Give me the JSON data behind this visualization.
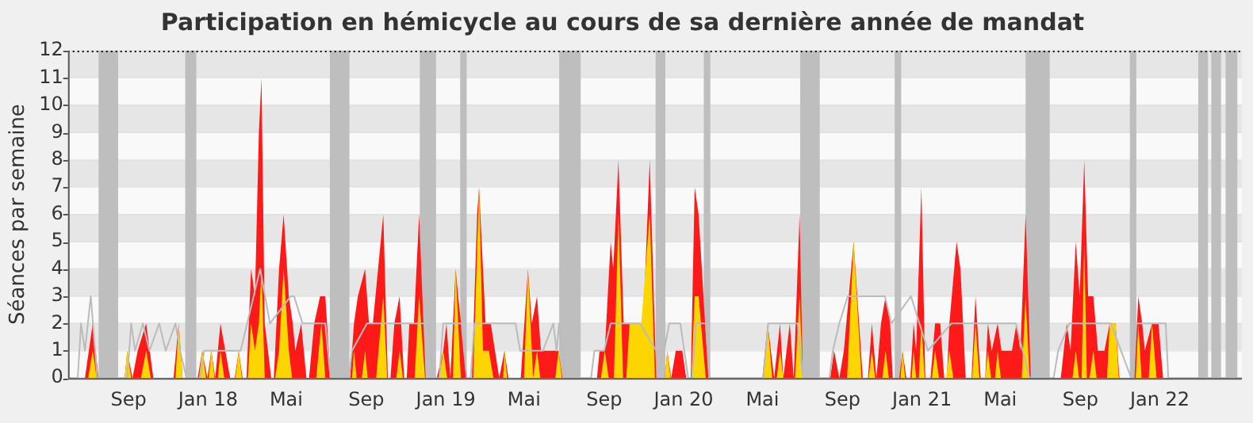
{
  "chart_data": {
    "type": "area",
    "title": "Participation en hémicycle au cours de sa dernière année de mandat",
    "ylabel": "Séances par semaine",
    "xlim": [
      "2017-05-31",
      "2022-05-07"
    ],
    "ylim": [
      0,
      12
    ],
    "yticks": [
      0,
      1,
      2,
      3,
      4,
      5,
      6,
      7,
      8,
      9,
      10,
      11,
      12
    ],
    "xticks": [
      {
        "value": "2017-09-01",
        "label": "Sep"
      },
      {
        "value": "2018-01-01",
        "label": "Jan 18"
      },
      {
        "value": "2018-05-01",
        "label": "Mai"
      },
      {
        "value": "2018-09-01",
        "label": "Sep"
      },
      {
        "value": "2019-01-01",
        "label": "Jan 19"
      },
      {
        "value": "2019-05-01",
        "label": "Mai"
      },
      {
        "value": "2019-09-01",
        "label": "Sep"
      },
      {
        "value": "2020-01-01",
        "label": "Jan 20"
      },
      {
        "value": "2020-05-01",
        "label": "Mai"
      },
      {
        "value": "2020-09-01",
        "label": "Sep"
      },
      {
        "value": "2021-01-01",
        "label": "Jan 21"
      },
      {
        "value": "2021-05-01",
        "label": "Mai"
      },
      {
        "value": "2021-09-01",
        "label": "Sep"
      },
      {
        "value": "2022-01-01",
        "label": "Jan 22"
      }
    ],
    "grid": "y",
    "legend": false,
    "bands": [
      {
        "axis": "x",
        "from": "2017-07-17",
        "to": "2017-08-16",
        "color": "#bebebe"
      },
      {
        "axis": "x",
        "from": "2017-11-27",
        "to": "2017-12-14",
        "color": "#bebebe"
      },
      {
        "axis": "x",
        "from": "2018-07-07",
        "to": "2018-08-06",
        "color": "#bebebe"
      },
      {
        "axis": "x",
        "from": "2018-11-22",
        "to": "2018-12-17",
        "color": "#bebebe"
      },
      {
        "axis": "x",
        "from": "2019-01-23",
        "to": "2019-02-02",
        "color": "#bebebe"
      },
      {
        "axis": "x",
        "from": "2019-06-24",
        "to": "2019-07-27",
        "color": "#bebebe"
      },
      {
        "axis": "x",
        "from": "2019-11-19",
        "to": "2019-12-04",
        "color": "#bebebe"
      },
      {
        "axis": "x",
        "from": "2020-02-01",
        "to": "2020-02-11",
        "color": "#bebebe"
      },
      {
        "axis": "x",
        "from": "2020-06-28",
        "to": "2020-07-28",
        "color": "#bebebe"
      },
      {
        "axis": "x",
        "from": "2020-11-20",
        "to": "2020-11-30",
        "color": "#bebebe"
      },
      {
        "axis": "x",
        "from": "2021-06-09",
        "to": "2021-07-16",
        "color": "#bebebe"
      },
      {
        "axis": "x",
        "from": "2021-11-16",
        "to": "2021-11-26",
        "color": "#bebebe"
      },
      {
        "axis": "x",
        "from": "2022-03-01",
        "to": "2022-03-16",
        "color": "#bebebe"
      },
      {
        "axis": "x",
        "from": "2022-03-21",
        "to": "2022-04-05",
        "color": "#bebebe"
      },
      {
        "axis": "x",
        "from": "2022-04-12",
        "to": "2022-04-30",
        "color": "#bebebe"
      }
    ],
    "series": [
      {
        "type": "line",
        "color": "#bbbbbb",
        "x": [
          "2017-05-31",
          "2017-06-15",
          "2017-06-20",
          "2017-06-26",
          "2017-07-05",
          "2017-07-15",
          "2017-08-30",
          "2017-09-05",
          "2017-09-11",
          "2017-09-23",
          "2017-10-03",
          "2017-10-18",
          "2017-10-28",
          "2017-11-12",
          "2017-11-19",
          "2017-11-29",
          "2017-12-20",
          "2017-12-26",
          "2018-02-20",
          "2018-03-22",
          "2018-04-06",
          "2018-05-08",
          "2018-05-13",
          "2018-05-26",
          "2018-06-30",
          "2018-07-08",
          "2018-08-05",
          "2018-08-10",
          "2018-09-02",
          "2018-10-10",
          "2018-11-10",
          "2018-12-05",
          "2018-12-12",
          "2018-12-22",
          "2018-12-28",
          "2019-01-25",
          "2019-02-02",
          "2019-02-08",
          "2019-02-14",
          "2019-03-20",
          "2019-04-18",
          "2019-04-25",
          "2019-05-30",
          "2019-06-15",
          "2019-06-20",
          "2019-06-24",
          "2019-07-03",
          "2019-08-12",
          "2019-08-17",
          "2019-09-01",
          "2019-09-11",
          "2019-10-26",
          "2019-11-20",
          "2019-12-02",
          "2019-12-10",
          "2019-12-27",
          "2020-01-08",
          "2020-01-14",
          "2020-01-20",
          "2020-02-04",
          "2020-02-10",
          "2020-05-02",
          "2020-05-10",
          "2020-06-24",
          "2020-07-02",
          "2020-08-12",
          "2020-08-17",
          "2020-08-27",
          "2020-09-09",
          "2020-10-24",
          "2020-11-05",
          "2020-11-15",
          "2020-12-15",
          "2021-01-10",
          "2021-02-15",
          "2021-03-20",
          "2021-04-15",
          "2021-05-25",
          "2021-06-15",
          "2021-07-22",
          "2021-07-29",
          "2021-08-15",
          "2021-09-18",
          "2021-10-18",
          "2021-11-18",
          "2021-11-25",
          "2021-12-20",
          "2022-01-10",
          "2022-01-14",
          "2022-05-07"
        ],
        "values": [
          0,
          0,
          2,
          1,
          3,
          0,
          0,
          2,
          1,
          2,
          1,
          2,
          1,
          2,
          1,
          0,
          0,
          1,
          1,
          4,
          2,
          3,
          3,
          2,
          2,
          0,
          0,
          1,
          2,
          2,
          2,
          2,
          0,
          0,
          2,
          2,
          0,
          0,
          2,
          2,
          2,
          1,
          1,
          2,
          1,
          2,
          0,
          0,
          1,
          1,
          2,
          2,
          1,
          1,
          2,
          2,
          0,
          0,
          2,
          2,
          0,
          0,
          2,
          2,
          0,
          0,
          1,
          2,
          3,
          3,
          3,
          2,
          3,
          1,
          2,
          2,
          2,
          2,
          0,
          0,
          1,
          2,
          2,
          2,
          0,
          2,
          2,
          2,
          0,
          0
        ]
      },
      {
        "color": "#ff1a1a",
        "x": [
          "2017-05-31",
          "2017-06-26",
          "2017-07-08",
          "2017-07-17",
          "2017-08-26",
          "2017-08-30",
          "2017-09-07",
          "2017-09-15",
          "2017-09-28",
          "2017-10-09",
          "2017-11-09",
          "2017-11-17",
          "2017-11-23",
          "2017-12-16",
          "2017-12-23",
          "2017-12-31",
          "2018-01-06",
          "2018-01-12",
          "2018-01-20",
          "2018-02-04",
          "2018-02-11",
          "2018-02-17",
          "2018-02-23",
          "2018-03-01",
          "2018-03-08",
          "2018-03-14",
          "2018-03-20",
          "2018-03-24",
          "2018-03-29",
          "2018-04-08",
          "2018-04-12",
          "2018-04-16",
          "2018-04-20",
          "2018-04-27",
          "2018-05-05",
          "2018-05-11",
          "2018-05-15",
          "2018-05-24",
          "2018-06-01",
          "2018-06-05",
          "2018-06-13",
          "2018-06-22",
          "2018-06-30",
          "2018-07-08",
          "2018-08-07",
          "2018-08-13",
          "2018-08-19",
          "2018-08-30",
          "2018-09-05",
          "2018-09-11",
          "2018-09-19",
          "2018-09-27",
          "2018-10-04",
          "2018-10-08",
          "2018-10-14",
          "2018-10-22",
          "2018-10-29",
          "2018-11-02",
          "2018-11-06",
          "2018-11-13",
          "2018-11-21",
          "2018-12-01",
          "2018-12-18",
          "2018-12-28",
          "2019-01-02",
          "2019-01-08",
          "2019-01-16",
          "2019-01-20",
          "2019-02-02",
          "2019-02-10",
          "2019-02-18",
          "2019-02-21",
          "2019-03-03",
          "2019-03-11",
          "2019-03-24",
          "2019-04-01",
          "2019-04-07",
          "2019-04-26",
          "2019-05-07",
          "2019-05-13",
          "2019-05-21",
          "2019-05-27",
          "2019-06-23",
          "2019-06-29",
          "2019-08-21",
          "2019-08-25",
          "2019-09-02",
          "2019-09-11",
          "2019-09-15",
          "2019-09-23",
          "2019-10-01",
          "2019-10-18",
          "2019-10-31",
          "2019-11-10",
          "2019-11-20",
          "2019-12-03",
          "2019-12-07",
          "2019-12-13",
          "2019-12-20",
          "2019-12-30",
          "2020-01-05",
          "2020-01-12",
          "2020-01-18",
          "2020-01-24",
          "2020-02-08",
          "2020-05-01",
          "2020-05-09",
          "2020-05-19",
          "2020-05-28",
          "2020-06-02",
          "2020-06-12",
          "2020-06-18",
          "2020-06-27",
          "2020-07-02",
          "2020-08-13",
          "2020-08-19",
          "2020-08-27",
          "2020-09-03",
          "2020-09-18",
          "2020-10-02",
          "2020-10-10",
          "2020-10-16",
          "2020-10-23",
          "2020-10-30",
          "2020-11-06",
          "2020-11-13",
          "2020-11-17",
          "2020-11-27",
          "2020-12-02",
          "2020-12-08",
          "2020-12-14",
          "2020-12-19",
          "2020-12-23",
          "2020-12-31",
          "2021-01-06",
          "2021-01-14",
          "2021-01-21",
          "2021-01-29",
          "2021-02-04",
          "2021-02-08",
          "2021-02-12",
          "2021-02-23",
          "2021-03-01",
          "2021-03-09",
          "2021-03-18",
          "2021-03-24",
          "2021-04-01",
          "2021-04-08",
          "2021-04-12",
          "2021-04-18",
          "2021-04-27",
          "2021-05-03",
          "2021-05-19",
          "2021-05-26",
          "2021-06-01",
          "2021-06-09",
          "2021-06-17",
          "2021-08-02",
          "2021-08-11",
          "2021-08-17",
          "2021-08-25",
          "2021-08-31",
          "2021-09-07",
          "2021-09-13",
          "2021-09-21",
          "2021-09-28",
          "2021-10-08",
          "2021-10-16",
          "2021-10-25",
          "2021-10-31",
          "2021-11-23",
          "2021-11-29",
          "2021-12-05",
          "2021-12-09",
          "2021-12-20",
          "2021-12-30",
          "2022-01-06",
          "2022-05-07"
        ],
        "values": [
          0,
          0,
          2,
          0,
          0,
          1,
          0,
          1,
          2,
          0,
          0,
          2,
          0,
          0,
          1,
          0,
          1,
          0,
          2,
          0,
          0,
          1,
          0,
          0,
          4,
          3,
          9,
          11,
          2,
          0,
          0,
          2,
          4,
          6,
          3,
          2,
          1,
          2,
          0,
          0,
          2,
          3,
          3,
          0,
          0,
          2,
          3,
          4,
          2,
          2,
          4,
          6,
          0,
          0,
          2,
          3,
          0,
          0,
          2,
          2,
          6,
          0,
          0,
          1,
          2,
          0,
          4,
          3,
          0,
          0,
          6,
          7,
          2,
          2,
          0,
          1,
          0,
          0,
          4,
          2,
          3,
          1,
          1,
          0,
          0,
          1,
          1,
          5,
          4,
          8,
          2,
          2,
          2,
          8,
          0,
          0,
          1,
          0,
          1,
          1,
          0,
          0,
          7,
          6,
          0,
          0,
          2,
          0,
          2,
          0,
          2,
          0,
          6,
          0,
          0,
          1,
          0,
          1,
          5,
          0,
          0,
          2,
          0,
          2,
          3,
          2,
          0,
          0,
          1,
          0,
          0,
          2,
          1,
          7,
          0,
          0,
          2,
          2,
          0,
          0,
          2,
          5,
          4,
          0,
          0,
          3,
          0,
          0,
          2,
          1,
          2,
          1,
          1,
          2,
          1,
          6,
          0,
          0,
          2,
          1,
          5,
          3,
          8,
          3,
          3,
          1,
          1,
          2,
          2,
          0,
          0,
          3,
          2,
          1,
          2,
          2,
          0,
          0
        ]
      },
      {
        "color": "#ffd500",
        "x": [
          "2017-05-31",
          "2017-07-01",
          "2017-07-08",
          "2017-07-14",
          "2017-08-26",
          "2017-08-30",
          "2017-09-05",
          "2017-09-20",
          "2017-09-28",
          "2017-10-05",
          "2017-11-12",
          "2017-11-17",
          "2017-11-23",
          "2017-12-18",
          "2017-12-23",
          "2017-12-29",
          "2018-01-02",
          "2018-01-06",
          "2018-01-11",
          "2018-01-16",
          "2018-01-20",
          "2018-01-26",
          "2018-02-12",
          "2018-02-17",
          "2018-02-22",
          "2018-03-03",
          "2018-03-08",
          "2018-03-14",
          "2018-03-20",
          "2018-03-24",
          "2018-03-29",
          "2018-04-14",
          "2018-04-20",
          "2018-04-27",
          "2018-05-05",
          "2018-05-10",
          "2018-06-16",
          "2018-06-24",
          "2018-06-30",
          "2018-08-10",
          "2018-08-13",
          "2018-08-17",
          "2018-08-25",
          "2018-08-30",
          "2018-09-03",
          "2018-09-16",
          "2018-09-27",
          "2018-10-03",
          "2018-10-17",
          "2018-10-22",
          "2018-10-27",
          "2018-11-14",
          "2018-11-21",
          "2018-11-30",
          "2018-12-22",
          "2018-12-28",
          "2019-01-03",
          "2019-01-12",
          "2019-01-16",
          "2019-01-24",
          "2019-02-12",
          "2019-02-21",
          "2019-02-27",
          "2019-03-08",
          "2019-03-15",
          "2019-03-30",
          "2019-04-01",
          "2019-04-05",
          "2019-05-01",
          "2019-05-07",
          "2019-05-15",
          "2019-05-21",
          "2019-05-26",
          "2019-06-18",
          "2019-06-23",
          "2019-06-28",
          "2019-08-27",
          "2019-09-02",
          "2019-09-08",
          "2019-09-16",
          "2019-09-23",
          "2019-09-30",
          "2019-10-05",
          "2019-10-10",
          "2019-10-28",
          "2019-11-10",
          "2019-11-18",
          "2019-12-03",
          "2019-12-07",
          "2019-12-12",
          "2020-01-13",
          "2020-01-18",
          "2020-01-24",
          "2020-02-04",
          "2020-05-03",
          "2020-05-09",
          "2020-05-16",
          "2020-05-23",
          "2020-05-28",
          "2020-06-02",
          "2020-06-20",
          "2020-06-27",
          "2020-07-02",
          "2020-09-08",
          "2020-09-18",
          "2020-09-30",
          "2020-10-11",
          "2020-10-16",
          "2020-10-21",
          "2020-11-01",
          "2020-11-06",
          "2020-11-11",
          "2020-11-29",
          "2020-12-02",
          "2020-12-06",
          "2020-12-16",
          "2020-12-19",
          "2020-12-23",
          "2020-12-27",
          "2020-12-31",
          "2021-01-05",
          "2021-01-16",
          "2021-01-21",
          "2021-01-27",
          "2021-02-07",
          "2021-02-12",
          "2021-02-18",
          "2021-03-19",
          "2021-03-24",
          "2021-03-30",
          "2021-04-08",
          "2021-04-12",
          "2021-04-17",
          "2021-04-23",
          "2021-04-27",
          "2021-05-02",
          "2021-06-03",
          "2021-06-09",
          "2021-06-15",
          "2021-08-20",
          "2021-08-25",
          "2021-08-30",
          "2021-09-03",
          "2021-09-07",
          "2021-09-11",
          "2021-09-15",
          "2021-09-21",
          "2021-09-26",
          "2021-10-12",
          "2021-10-16",
          "2021-10-25",
          "2021-10-30",
          "2021-11-25",
          "2021-11-29",
          "2021-12-04",
          "2021-12-15",
          "2021-12-20",
          "2021-12-27",
          "2022-05-07"
        ],
        "values": [
          0,
          0,
          1,
          0,
          0,
          1,
          0,
          0,
          1,
          0,
          0,
          2,
          0,
          0,
          1,
          0,
          0,
          1,
          0,
          0,
          1,
          0,
          0,
          1,
          0,
          0,
          2,
          1,
          2,
          4,
          0,
          0,
          1,
          4,
          1,
          0,
          0,
          2,
          0,
          0,
          1,
          0,
          0,
          1,
          0,
          0,
          3,
          0,
          0,
          1,
          0,
          0,
          3,
          0,
          0,
          1,
          0,
          0,
          4,
          0,
          0,
          7,
          1,
          1,
          0,
          0,
          1,
          0,
          0,
          4,
          0,
          1,
          0,
          0,
          1,
          0,
          0,
          1,
          0,
          0,
          6,
          0,
          0,
          2,
          2,
          6,
          0,
          0,
          1,
          0,
          0,
          3,
          3,
          0,
          0,
          2,
          0,
          0,
          1,
          0,
          0,
          3,
          0,
          0,
          5,
          0,
          0,
          1,
          0,
          0,
          1,
          0,
          0,
          1,
          0,
          0,
          1,
          0,
          0,
          2,
          0,
          0,
          1,
          0,
          0,
          1,
          0,
          0,
          2,
          0,
          0,
          1,
          0,
          0,
          1,
          0,
          0,
          3,
          0,
          0,
          1,
          0,
          0,
          5,
          0,
          0,
          1,
          0,
          0,
          2,
          2,
          0,
          0,
          2,
          0,
          0,
          2,
          0,
          0
        ]
      }
    ]
  }
}
